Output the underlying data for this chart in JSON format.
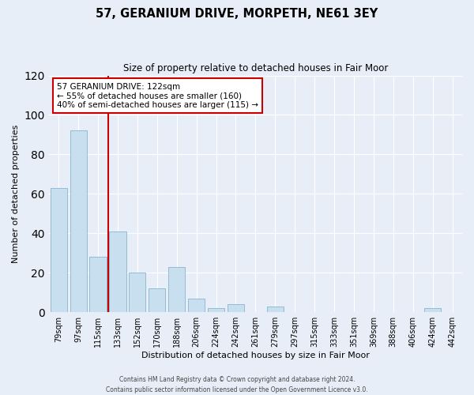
{
  "title": "57, GERANIUM DRIVE, MORPETH, NE61 3EY",
  "subtitle": "Size of property relative to detached houses in Fair Moor",
  "xlabel": "Distribution of detached houses by size in Fair Moor",
  "ylabel": "Number of detached properties",
  "bar_labels": [
    "79sqm",
    "97sqm",
    "115sqm",
    "133sqm",
    "152sqm",
    "170sqm",
    "188sqm",
    "206sqm",
    "224sqm",
    "242sqm",
    "261sqm",
    "279sqm",
    "297sqm",
    "315sqm",
    "333sqm",
    "351sqm",
    "369sqm",
    "388sqm",
    "406sqm",
    "424sqm",
    "442sqm"
  ],
  "bar_heights": [
    63,
    92,
    28,
    41,
    20,
    12,
    23,
    7,
    2,
    4,
    0,
    3,
    0,
    0,
    0,
    0,
    0,
    0,
    0,
    2,
    0
  ],
  "bar_color": "#c8dff0",
  "bar_edge_color": "#8ab4cc",
  "vline_color": "#cc0000",
  "annotation_text": "57 GERANIUM DRIVE: 122sqm\n← 55% of detached houses are smaller (160)\n40% of semi-detached houses are larger (115) →",
  "annotation_box_color": "white",
  "annotation_box_edge": "#cc0000",
  "ylim": [
    0,
    120
  ],
  "yticks": [
    0,
    20,
    40,
    60,
    80,
    100,
    120
  ],
  "footer_line1": "Contains HM Land Registry data © Crown copyright and database right 2024.",
  "footer_line2": "Contains public sector information licensed under the Open Government Licence v3.0.",
  "bg_color": "#e8eef8",
  "grid_color": "#ffffff",
  "title_fontsize": 10.5,
  "subtitle_fontsize": 8.5,
  "axis_fontsize": 8,
  "tick_fontsize": 7,
  "footer_fontsize": 5.5
}
